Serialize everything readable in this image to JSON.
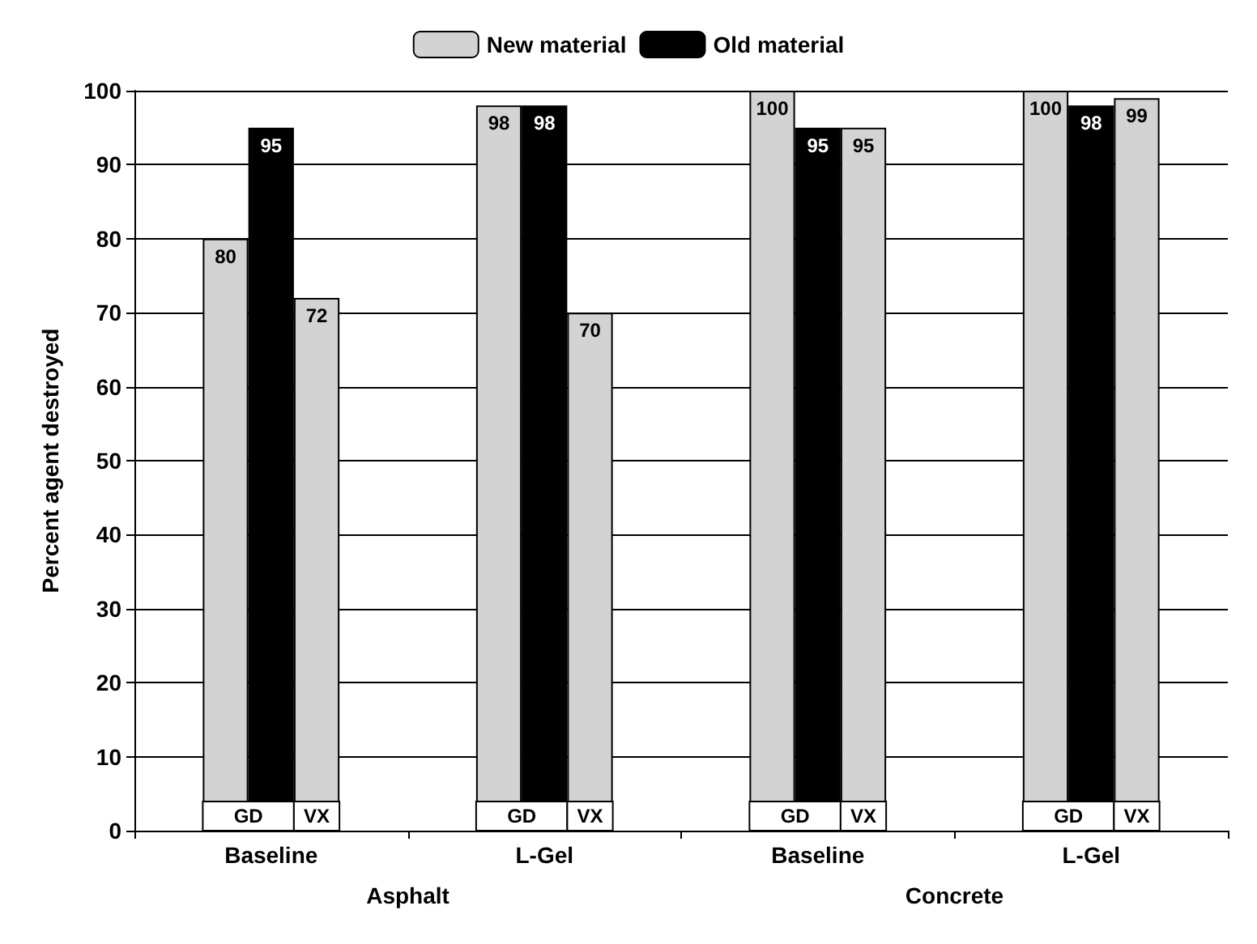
{
  "chart_data": {
    "type": "bar",
    "ylabel": "Percent agent destroyed",
    "categories": [
      "Baseline",
      "L-Gel",
      "Baseline",
      "L-Gel"
    ],
    "series": [
      {
        "name": "New material",
        "color": "#d3d3d3",
        "values": [
          80,
          98,
          100,
          100
        ]
      },
      {
        "name": "Old material",
        "color": "#000000",
        "values": [
          95,
          98,
          95,
          98
        ]
      },
      {
        "color": "#d3d3d3",
        "values": [
          72,
          70,
          95,
          99
        ]
      }
    ],
    "annotations": [
      "GD",
      "VX",
      "Asphalt",
      "Concrete"
    ],
    "ylim": [
      0,
      100
    ],
    "yticks": [
      0,
      10,
      20,
      30,
      40,
      50,
      60,
      70,
      80,
      90,
      100
    ],
    "grid": "y",
    "legend": "top",
    "data_labels": true
  }
}
